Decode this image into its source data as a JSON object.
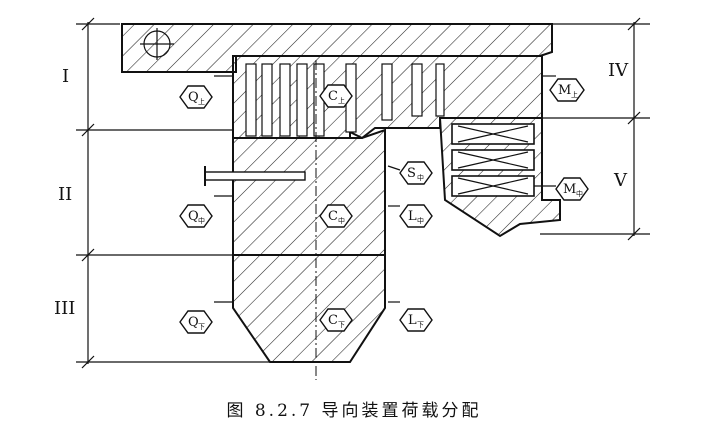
{
  "caption": "图 8.2.7   导向装置荷载分配",
  "zones": {
    "left": [
      "I",
      "II",
      "III"
    ],
    "right": [
      "IV",
      "V"
    ]
  },
  "labels": {
    "q_upper": {
      "main": "Q",
      "sub": "上"
    },
    "q_middle": {
      "main": "Q",
      "sub": "中"
    },
    "q_lower": {
      "main": "Q",
      "sub": "下"
    },
    "c_upper": {
      "main": "C",
      "sub": "上"
    },
    "c_middle": {
      "main": "C",
      "sub": "中"
    },
    "c_lower": {
      "main": "C",
      "sub": "下"
    },
    "s_middle": {
      "main": "S",
      "sub": "中"
    },
    "l_middle": {
      "main": "L",
      "sub": "中"
    },
    "l_lower": {
      "main": "L",
      "sub": "下"
    },
    "m_upper": {
      "main": "M",
      "sub": "上"
    },
    "m_middle": {
      "main": "M",
      "sub": "中"
    }
  }
}
